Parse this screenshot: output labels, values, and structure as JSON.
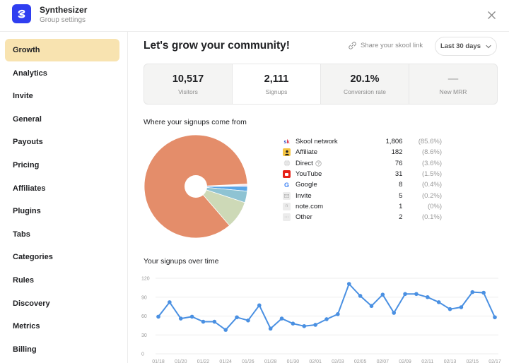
{
  "header": {
    "app_title": "Synthesizer",
    "app_subtitle": "Group settings",
    "logo_color": "#2f3ef0",
    "close_icon": "close-icon"
  },
  "sidebar": {
    "active_color": "#f8e3b0",
    "items": [
      {
        "label": "Growth",
        "active": true
      },
      {
        "label": "Analytics"
      },
      {
        "label": "Invite"
      },
      {
        "label": "General"
      },
      {
        "label": "Payouts"
      },
      {
        "label": "Pricing"
      },
      {
        "label": "Affiliates"
      },
      {
        "label": "Plugins"
      },
      {
        "label": "Tabs"
      },
      {
        "label": "Categories"
      },
      {
        "label": "Rules"
      },
      {
        "label": "Discovery"
      },
      {
        "label": "Metrics"
      },
      {
        "label": "Billing"
      }
    ]
  },
  "main": {
    "title": "Let's grow your community!",
    "share_link": {
      "label": "Share your skool link",
      "icon": "link-icon"
    },
    "range_select": {
      "value": "Last 30 days",
      "icon": "chevron-down-icon"
    },
    "stats": [
      {
        "value": "10,517",
        "label": "Visitors"
      },
      {
        "value": "2,111",
        "label": "Signups",
        "active": true
      },
      {
        "value": "20.1%",
        "label": "Conversion rate"
      },
      {
        "value": "—",
        "label": "New MRR"
      }
    ],
    "sources_title": "Where your signups come from",
    "sources": [
      {
        "name": "Skool network",
        "count": "1,806",
        "pct": "(85.6%)",
        "icon": "skool-icon",
        "color": "#e48d6a"
      },
      {
        "name": "Affiliate",
        "count": "182",
        "pct": "(8.6%)",
        "icon": "affiliate-icon",
        "color": "#cdd9b7"
      },
      {
        "name": "Direct",
        "count": "76",
        "pct": "(3.6%)",
        "icon": "globe-icon",
        "color": "#8ec3d3",
        "help_icon": "help-circle-icon"
      },
      {
        "name": "YouTube",
        "count": "31",
        "pct": "(1.5%)",
        "icon": "youtube-icon",
        "color": "#5aa6e6"
      },
      {
        "name": "Google",
        "count": "8",
        "pct": "(0.4%)",
        "icon": "google-icon",
        "color": "#c7b7e0"
      },
      {
        "name": "Invite",
        "count": "5",
        "pct": "(0.2%)",
        "icon": "mail-icon",
        "color": "#f0b5c4"
      },
      {
        "name": "note.com",
        "count": "1",
        "pct": "(0%)",
        "icon": "note-icon",
        "color": "#e8c27a"
      },
      {
        "name": "Other",
        "count": "2",
        "pct": "(0.1%)",
        "icon": "more-icon",
        "color": "#d8d8d8"
      }
    ],
    "timeline_title": "Your signups over time"
  },
  "chart_data": [
    {
      "type": "pie",
      "title": "Where your signups come from",
      "categories": [
        "Skool network",
        "Affiliate",
        "Direct",
        "YouTube",
        "Google",
        "Invite",
        "note.com",
        "Other"
      ],
      "values": [
        1806,
        182,
        76,
        31,
        8,
        5,
        1,
        2
      ],
      "percentages": [
        85.6,
        8.6,
        3.6,
        1.5,
        0.4,
        0.2,
        0,
        0.1
      ],
      "donut_hole": true
    },
    {
      "type": "line",
      "title": "Your signups over time",
      "xlabel": "",
      "ylabel": "",
      "ylim": [
        0,
        120
      ],
      "yticks": [
        0,
        30,
        60,
        90,
        120
      ],
      "grid": true,
      "line_color": "#4a90e2",
      "x_tick_labels": [
        "01/18",
        "01/20",
        "01/22",
        "01/24",
        "01/26",
        "01/28",
        "01/30",
        "02/01",
        "02/03",
        "02/05",
        "02/07",
        "02/09",
        "02/11",
        "02/13",
        "02/15",
        "02/17"
      ],
      "x": [
        "01/18",
        "01/19",
        "01/20",
        "01/21",
        "01/22",
        "01/23",
        "01/24",
        "01/25",
        "01/26",
        "01/27",
        "01/28",
        "01/29",
        "01/30",
        "01/31",
        "02/01",
        "02/02",
        "02/03",
        "02/04",
        "02/05",
        "02/06",
        "02/07",
        "02/08",
        "02/09",
        "02/10",
        "02/11",
        "02/12",
        "02/13",
        "02/14",
        "02/15",
        "02/16",
        "02/17"
      ],
      "series": [
        {
          "name": "Signups",
          "values": [
            59,
            82,
            56,
            59,
            51,
            51,
            38,
            58,
            53,
            77,
            40,
            56,
            48,
            44,
            46,
            55,
            63,
            111,
            92,
            76,
            94,
            65,
            95,
            95,
            90,
            82,
            71,
            74,
            98,
            97,
            58
          ]
        }
      ]
    }
  ]
}
